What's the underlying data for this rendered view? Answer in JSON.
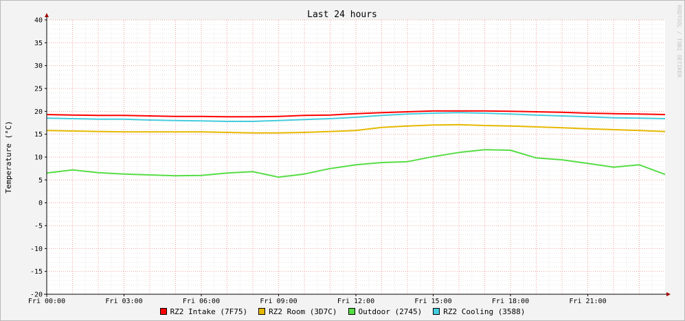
{
  "chart_data": {
    "type": "line",
    "title": "Last 24 hours",
    "ylabel": "Temperature (°C)",
    "xlabel": "",
    "watermark": "RRDTOOL / TOBI OETIKER",
    "ylim": [
      -20,
      40
    ],
    "yticks": [
      -20,
      -15,
      -10,
      -5,
      0,
      5,
      10,
      15,
      20,
      25,
      30,
      35,
      40
    ],
    "xlim": [
      0,
      24
    ],
    "x_unit": "hours since Fri 00:00",
    "xticks": [
      {
        "x": 0,
        "label": "Fri 00:00"
      },
      {
        "x": 3,
        "label": "Fri 03:00"
      },
      {
        "x": 6,
        "label": "Fri 06:00"
      },
      {
        "x": 9,
        "label": "Fri 09:00"
      },
      {
        "x": 12,
        "label": "Fri 12:00"
      },
      {
        "x": 15,
        "label": "Fri 15:00"
      },
      {
        "x": 18,
        "label": "Fri 18:00"
      },
      {
        "x": 21,
        "label": "Fri 21:00"
      }
    ],
    "grid": true,
    "legend_position": "bottom-center",
    "x": [
      0,
      1,
      2,
      3,
      4,
      5,
      6,
      7,
      8,
      9,
      10,
      11,
      12,
      13,
      14,
      15,
      16,
      17,
      18,
      19,
      20,
      21,
      22,
      23,
      24
    ],
    "series": [
      {
        "name": "RZ2 Intake (7F75)",
        "color": "#ff0000",
        "values": [
          19.3,
          19.2,
          19.1,
          19.1,
          19.0,
          18.9,
          18.9,
          18.8,
          18.8,
          18.9,
          19.1,
          19.2,
          19.5,
          19.7,
          19.9,
          20.1,
          20.1,
          20.1,
          20.0,
          19.9,
          19.8,
          19.6,
          19.5,
          19.4,
          19.3
        ]
      },
      {
        "name": "RZ2 Room (3D7C)",
        "color": "#e6b800",
        "values": [
          15.8,
          15.7,
          15.6,
          15.5,
          15.5,
          15.5,
          15.5,
          15.4,
          15.3,
          15.3,
          15.4,
          15.6,
          15.8,
          16.5,
          16.8,
          17.0,
          17.1,
          16.9,
          16.8,
          16.6,
          16.4,
          16.2,
          16.0,
          15.8,
          15.6
        ]
      },
      {
        "name": "Outdoor (2745)",
        "color": "#55dd44",
        "values": [
          6.5,
          7.2,
          6.6,
          6.3,
          6.1,
          5.9,
          6.0,
          6.5,
          6.8,
          5.6,
          6.3,
          7.5,
          8.3,
          8.8,
          9.0,
          10.1,
          11.0,
          11.6,
          11.5,
          9.8,
          9.4,
          8.6,
          7.8,
          8.3,
          6.2
        ]
      },
      {
        "name": "RZ2 Cooling (3588)",
        "color": "#44ccdd",
        "values": [
          18.5,
          18.4,
          18.3,
          18.3,
          18.1,
          18.0,
          17.9,
          17.8,
          17.8,
          18.0,
          18.2,
          18.4,
          18.7,
          19.1,
          19.4,
          19.6,
          19.7,
          19.6,
          19.4,
          19.2,
          19.0,
          18.8,
          18.6,
          18.5,
          18.4
        ]
      }
    ]
  }
}
